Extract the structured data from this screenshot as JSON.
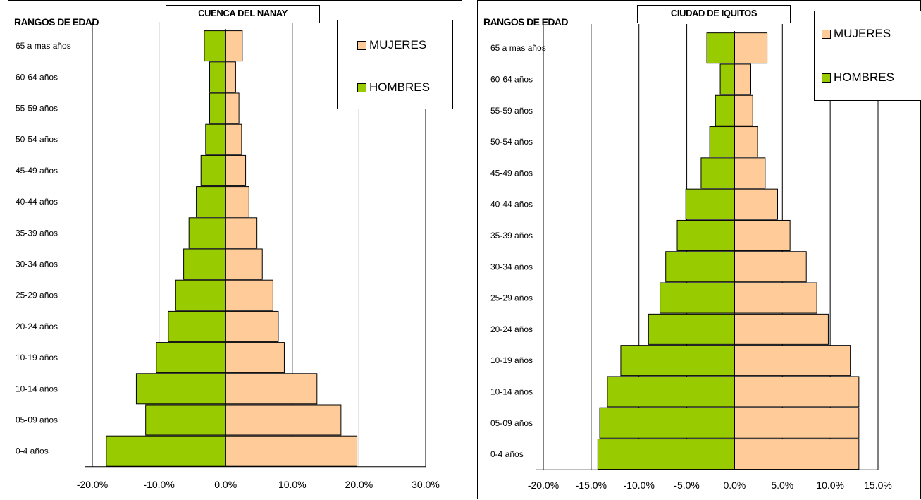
{
  "chart_data": [
    {
      "type": "bar",
      "orientation": "horizontal",
      "title": "CUENCA DEL NANAY",
      "ylabel": "RANGOS DE EDAD",
      "categories": [
        "65 a mas años",
        "60-64 años",
        "55-59 años",
        "50-54 años",
        "45-49 años",
        "40-44 años",
        "35-39 años",
        "30-34 años",
        "25-29 años",
        "20-24 años",
        "10-19 años",
        "10-14 años",
        "05-09 años",
        "0-4 años"
      ],
      "series": [
        {
          "name": "MUJERES",
          "color": "#FFCC99",
          "values": [
            2.5,
            1.5,
            2.0,
            2.4,
            3.0,
            3.5,
            4.7,
            5.5,
            7.1,
            7.9,
            8.8,
            13.7,
            17.3,
            19.7
          ]
        },
        {
          "name": "HOMBRES",
          "color": "#99CC00",
          "values": [
            -3.2,
            -2.4,
            -2.4,
            -3.0,
            -3.7,
            -4.4,
            -5.5,
            -6.3,
            -7.5,
            -8.6,
            -10.4,
            -13.4,
            -12.0,
            -17.9
          ]
        }
      ],
      "xlim": [
        -20,
        30
      ],
      "xticks": [
        -20,
        -10,
        0,
        10,
        20,
        30
      ],
      "tick_labels": [
        "-20.0%",
        "-10.0%",
        "0.0%",
        "10.0%",
        "20.0%",
        "30.0%"
      ],
      "grid": "vertical",
      "legend": "top-right"
    },
    {
      "type": "bar",
      "orientation": "horizontal",
      "title": "CIUDAD DE IQUITOS",
      "ylabel": "RANGOS DE EDAD",
      "categories": [
        "65 a mas años",
        "60-64 años",
        "55-59 años",
        "50-54 años",
        "45-49 años",
        "40-44 años",
        "35-39 años",
        "30-34 años",
        "25-29 años",
        "20-24 años",
        "10-19 años",
        "10-14 años",
        "05-09 años",
        "0-4 años"
      ],
      "series": [
        {
          "name": "MUJERES",
          "color": "#FFCC99",
          "values": [
            3.4,
            1.7,
            1.9,
            2.4,
            3.2,
            4.5,
            5.8,
            7.5,
            8.6,
            9.8,
            12.1,
            13.0,
            13.0,
            13.0
          ]
        },
        {
          "name": "HOMBRES",
          "color": "#99CC00",
          "values": [
            -2.9,
            -1.5,
            -2.0,
            -2.6,
            -3.5,
            -5.1,
            -6.0,
            -7.2,
            -7.8,
            -9.0,
            -11.9,
            -13.3,
            -14.1,
            -14.3
          ]
        }
      ],
      "xlim": [
        -20,
        15
      ],
      "xticks": [
        -20,
        -15,
        -10,
        -5,
        0,
        5,
        10,
        15
      ],
      "tick_labels": [
        "-20.0%",
        "-15.0%",
        "-10.0%",
        "-5.0%",
        "0.0%",
        "5.0%",
        "10.0%",
        "15.0%"
      ],
      "grid": "vertical",
      "legend": "top-right"
    }
  ]
}
